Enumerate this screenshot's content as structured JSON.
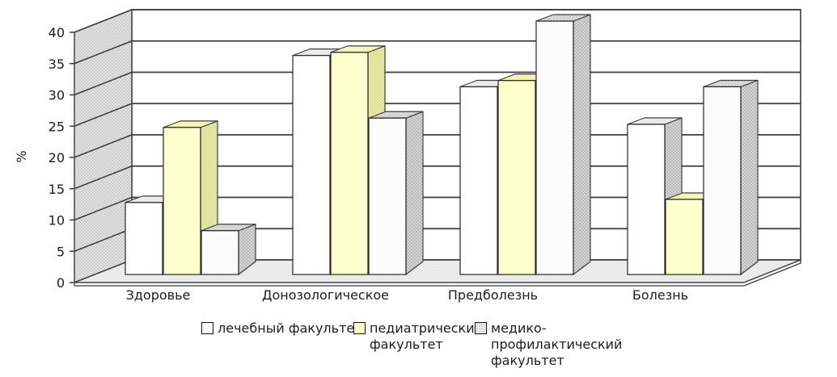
{
  "chart_data": {
    "type": "bar",
    "subtype": "3d-clustered-column",
    "title": "",
    "xlabel": "",
    "ylabel": "%",
    "ylim": [
      0,
      40
    ],
    "y_ticks": [
      0,
      5,
      10,
      15,
      20,
      25,
      30,
      35,
      40
    ],
    "grid": true,
    "legend_position": "bottom",
    "categories": [
      "Здоровье",
      "Донозологическое",
      "Предболезнь",
      "Болезнь"
    ],
    "series": [
      {
        "name": "лечебный факультет",
        "values": [
          11.5,
          35,
          30,
          24
        ],
        "color": "#ffffff"
      },
      {
        "name": "педиатрический факультет",
        "values": [
          23.5,
          35.5,
          31,
          12
        ],
        "color": "#ffffcc"
      },
      {
        "name": "медико-профилактический факультет",
        "values": [
          7,
          25,
          40.5,
          30
        ],
        "color": "#d9d9d9",
        "fill_pattern": "gray-dots"
      }
    ],
    "colors": {
      "gridline": "#3c3c3c",
      "wall_hatch": "#e2e2e2",
      "floor": "#efefef",
      "text": "#1c1c1c"
    }
  }
}
